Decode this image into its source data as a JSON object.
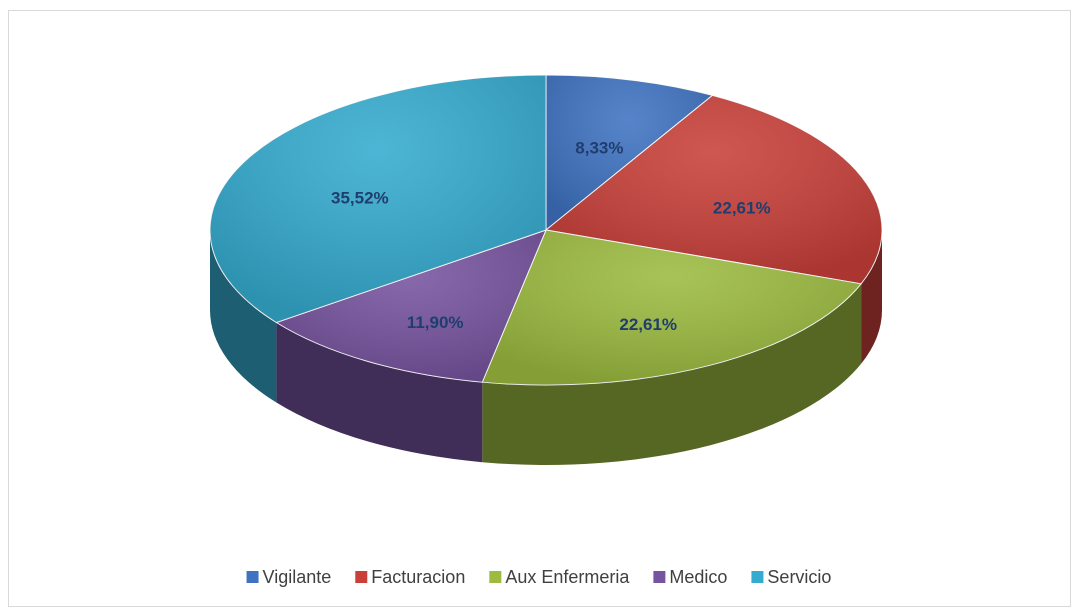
{
  "chart_data": {
    "type": "pie",
    "categories": [
      "Vigilante",
      "Facturacion",
      "Aux Enfermeria",
      "Medico",
      "Servicio"
    ],
    "values": [
      8.33,
      22.61,
      22.61,
      11.9,
      35.52
    ],
    "value_labels": [
      "8,33%",
      "22,61%",
      "22,61%",
      "11,90%",
      "35,52%"
    ],
    "colors": [
      "#3f73c2",
      "#c9403a",
      "#9cbb40",
      "#7754a0",
      "#35abcf"
    ],
    "legend": "bottom"
  }
}
